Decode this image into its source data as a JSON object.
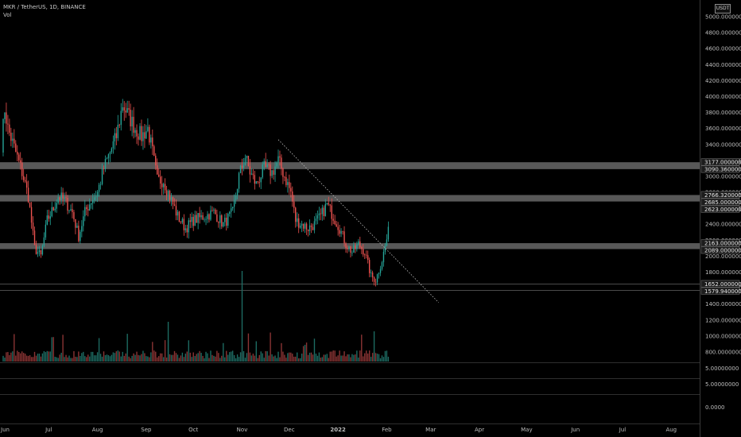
{
  "header": {
    "title": "MKR / TetherUS, 1D, BINANCE",
    "indicator": "Vol",
    "currency": "USDT"
  },
  "chart_data": {
    "type": "candlestick",
    "price_axis": {
      "ticks": [
        5000,
        4800,
        4600,
        4400,
        4200,
        4000,
        3800,
        3600,
        3400,
        3200,
        3000,
        2800,
        2600,
        2400,
        2200,
        2000,
        1800,
        1600,
        1400,
        1200,
        1000,
        800
      ],
      "tick_labels": [
        "5000.00000000",
        "4800.00000000",
        "4600.00000000",
        "4400.00000000",
        "4200.00000000",
        "4000.00000000",
        "3800.00000000",
        "3600.00000000",
        "3400.00000000",
        "3200.00000000",
        "3000.00000000",
        "2800.00000000",
        "2600.00000000",
        "2400.00000000",
        "2200.00000000",
        "2000.00000000",
        "1800.00000000",
        "1600.00000000",
        "1400.00000000",
        "1200.00000000",
        "1000.00000000",
        "800.00000000"
      ]
    },
    "level_tags": [
      {
        "label": "3177.00000000",
        "value": 3177
      },
      {
        "label": "3090.36000000",
        "value": 3090.36
      },
      {
        "label": "2766.32000000",
        "value": 2766.32
      },
      {
        "label": "2685.00000000",
        "value": 2685
      },
      {
        "label": "2623.00000000",
        "value": 2623
      },
      {
        "label": "2163.00000000",
        "value": 2163
      },
      {
        "label": "2089.00000000",
        "value": 2089
      },
      {
        "label": "1652.00000000",
        "value": 1652
      },
      {
        "label": "1579.94000000",
        "value": 1579.94
      }
    ],
    "zones": [
      {
        "low": 3090.36,
        "high": 3177
      },
      {
        "low": 2685,
        "high": 2766.32
      },
      {
        "low": 2089,
        "high": 2163
      }
    ],
    "lines": [
      1652,
      1579.94
    ],
    "trendline": {
      "from": [
        "2021-11-24",
        3460
      ],
      "to": [
        "2022-03-06",
        1420
      ]
    },
    "lower_panes": [
      {
        "label": "5.00000000"
      },
      {
        "label": "5.00000000"
      },
      {
        "label": "0.0000"
      }
    ],
    "time_labels": [
      "Jun",
      "Jul",
      "Aug",
      "Sep",
      "Oct",
      "Nov",
      "Dec",
      "2022",
      "Feb",
      "Mar",
      "Apr",
      "May",
      "Jun",
      "Jul",
      "Aug"
    ],
    "time_label_bold": "2022",
    "x_range": [
      "2021-06-01",
      "2022-08-14"
    ],
    "anchors": [
      {
        "date": "2021-06-01",
        "value": 3400
      },
      {
        "date": "2021-06-03",
        "value": 3850
      },
      {
        "date": "2021-06-05",
        "value": 3600
      },
      {
        "date": "2021-06-10",
        "value": 3300
      },
      {
        "date": "2021-06-14",
        "value": 3050
      },
      {
        "date": "2021-06-18",
        "value": 2750
      },
      {
        "date": "2021-06-22",
        "value": 2100
      },
      {
        "date": "2021-06-26",
        "value": 2000
      },
      {
        "date": "2021-06-30",
        "value": 2450
      },
      {
        "date": "2021-07-04",
        "value": 2600
      },
      {
        "date": "2021-07-07",
        "value": 2750
      },
      {
        "date": "2021-07-11",
        "value": 2700
      },
      {
        "date": "2021-07-16",
        "value": 2550
      },
      {
        "date": "2021-07-20",
        "value": 2250
      },
      {
        "date": "2021-07-24",
        "value": 2550
      },
      {
        "date": "2021-07-28",
        "value": 2700
      },
      {
        "date": "2021-08-01",
        "value": 2800
      },
      {
        "date": "2021-08-05",
        "value": 3100
      },
      {
        "date": "2021-08-09",
        "value": 3300
      },
      {
        "date": "2021-08-13",
        "value": 3500
      },
      {
        "date": "2021-08-17",
        "value": 3900
      },
      {
        "date": "2021-08-21",
        "value": 3750
      },
      {
        "date": "2021-08-25",
        "value": 3600
      },
      {
        "date": "2021-08-29",
        "value": 3500
      },
      {
        "date": "2021-09-02",
        "value": 3600
      },
      {
        "date": "2021-09-05",
        "value": 3300
      },
      {
        "date": "2021-09-08",
        "value": 2950
      },
      {
        "date": "2021-09-12",
        "value": 2950
      },
      {
        "date": "2021-09-16",
        "value": 2750
      },
      {
        "date": "2021-09-21",
        "value": 2500
      },
      {
        "date": "2021-09-26",
        "value": 2350
      },
      {
        "date": "2021-10-01",
        "value": 2450
      },
      {
        "date": "2021-10-08",
        "value": 2500
      },
      {
        "date": "2021-10-14",
        "value": 2550
      },
      {
        "date": "2021-10-20",
        "value": 2400
      },
      {
        "date": "2021-10-26",
        "value": 2550
      },
      {
        "date": "2021-10-30",
        "value": 3000
      },
      {
        "date": "2021-11-03",
        "value": 3250
      },
      {
        "date": "2021-11-06",
        "value": 3050
      },
      {
        "date": "2021-11-10",
        "value": 2900
      },
      {
        "date": "2021-11-15",
        "value": 3100
      },
      {
        "date": "2021-11-20",
        "value": 3050
      },
      {
        "date": "2021-11-24",
        "value": 3200
      },
      {
        "date": "2021-11-28",
        "value": 3000
      },
      {
        "date": "2021-12-02",
        "value": 2800
      },
      {
        "date": "2021-12-05",
        "value": 2450
      },
      {
        "date": "2021-12-09",
        "value": 2400
      },
      {
        "date": "2021-12-13",
        "value": 2350
      },
      {
        "date": "2021-12-17",
        "value": 2400
      },
      {
        "date": "2021-12-21",
        "value": 2500
      },
      {
        "date": "2021-12-25",
        "value": 2650
      },
      {
        "date": "2021-12-29",
        "value": 2500
      },
      {
        "date": "2022-01-02",
        "value": 2350
      },
      {
        "date": "2022-01-06",
        "value": 2150
      },
      {
        "date": "2022-01-10",
        "value": 2050
      },
      {
        "date": "2022-01-14",
        "value": 2150
      },
      {
        "date": "2022-01-18",
        "value": 2050
      },
      {
        "date": "2022-01-22",
        "value": 1750
      },
      {
        "date": "2022-01-25",
        "value": 1700
      },
      {
        "date": "2022-01-29",
        "value": 1950
      },
      {
        "date": "2022-02-02",
        "value": 2300
      }
    ]
  }
}
